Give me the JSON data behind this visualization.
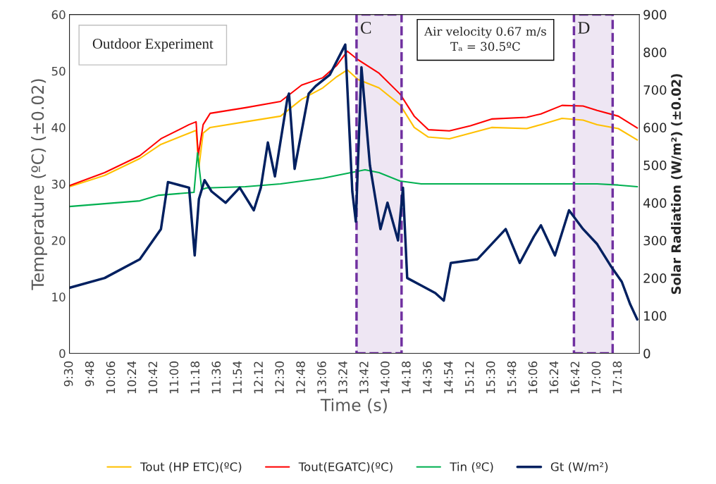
{
  "chart_data": {
    "type": "line",
    "xlabel": "Time (s)",
    "ylabel": "Temperature (ºC) (±0.02)",
    "y2label": "Solar Radiation (W/m²) (±0.02)",
    "xlim": [
      9.5,
      17.6
    ],
    "ylim": [
      0,
      60
    ],
    "yticks": [
      0,
      10,
      20,
      30,
      40,
      50,
      60
    ],
    "y2lim": [
      0,
      900
    ],
    "y2ticks": [
      0,
      100,
      200,
      300,
      400,
      500,
      600,
      700,
      800,
      900
    ],
    "xticks": [
      {
        "value": 9.5,
        "label": "9:30"
      },
      {
        "value": 9.8,
        "label": "9:48"
      },
      {
        "value": 10.1,
        "label": "10:06"
      },
      {
        "value": 10.4,
        "label": "10:24"
      },
      {
        "value": 10.7,
        "label": "10:42"
      },
      {
        "value": 11.0,
        "label": "11:00"
      },
      {
        "value": 11.3,
        "label": "11:18"
      },
      {
        "value": 11.6,
        "label": "11:36"
      },
      {
        "value": 11.9,
        "label": "11:54"
      },
      {
        "value": 12.2,
        "label": "12:12"
      },
      {
        "value": 12.5,
        "label": "12:30"
      },
      {
        "value": 12.8,
        "label": "12:48"
      },
      {
        "value": 13.1,
        "label": "13:06"
      },
      {
        "value": 13.4,
        "label": "13:24"
      },
      {
        "value": 13.7,
        "label": "13:42"
      },
      {
        "value": 14.0,
        "label": "14:00"
      },
      {
        "value": 14.3,
        "label": "14:18"
      },
      {
        "value": 14.6,
        "label": "14:36"
      },
      {
        "value": 14.9,
        "label": "14:54"
      },
      {
        "value": 15.2,
        "label": "15:12"
      },
      {
        "value": 15.5,
        "label": "15:30"
      },
      {
        "value": 15.8,
        "label": "15:48"
      },
      {
        "value": 16.1,
        "label": "16:06"
      },
      {
        "value": 16.4,
        "label": "16:24"
      },
      {
        "value": 16.7,
        "label": "16:42"
      },
      {
        "value": 17.0,
        "label": "17:00"
      },
      {
        "value": 17.3,
        "label": "17:18"
      }
    ],
    "grid": false,
    "legend": "bottom",
    "marker": "none",
    "line_style": "solid",
    "annotations": [
      "Outdoor Experiment",
      "Air velocity 0.67 m/s",
      "Tₐ = 30.5ºC"
    ],
    "bands": [
      {
        "axis": "x",
        "from": 13.58,
        "to": 14.22,
        "label": "C",
        "color": "#7030a0"
      },
      {
        "axis": "x",
        "from": 16.67,
        "to": 17.22,
        "label": "D",
        "color": "#7030a0"
      }
    ],
    "series": [
      {
        "name": "Tout (HP ETC)(ºC)",
        "color": "#ffc000",
        "x": [
          9.5,
          10.0,
          10.5,
          10.8,
          11.2,
          11.3,
          11.34,
          11.4,
          11.5,
          12.0,
          12.5,
          12.8,
          13.1,
          13.3,
          13.45,
          13.6,
          13.9,
          14.2,
          14.4,
          14.6,
          14.9,
          15.2,
          15.5,
          16.0,
          16.2,
          16.5,
          16.8,
          17.0,
          17.3,
          17.57
        ],
        "values": [
          29.5,
          31.5,
          34.5,
          37,
          39,
          39.5,
          33,
          39,
          40,
          41,
          42,
          45,
          47,
          49,
          50.2,
          48.5,
          47,
          44,
          40,
          38.3,
          38,
          39,
          40,
          39.8,
          40.5,
          41.6,
          41.3,
          40.5,
          39.8,
          37.8
        ]
      },
      {
        "name": "Tout(EGATC)(ºC)",
        "color": "#ff0000",
        "x": [
          9.5,
          10.0,
          10.5,
          10.8,
          11.2,
          11.3,
          11.33,
          11.4,
          11.5,
          12.0,
          12.5,
          12.8,
          13.1,
          13.3,
          13.45,
          13.6,
          13.9,
          14.2,
          14.4,
          14.6,
          14.9,
          15.2,
          15.5,
          16.0,
          16.2,
          16.5,
          16.8,
          17.0,
          17.3,
          17.57
        ],
        "values": [
          29.7,
          32,
          35,
          38,
          40.5,
          41,
          35,
          40.5,
          42.5,
          43.5,
          44.6,
          47.5,
          48.8,
          51,
          53.5,
          52,
          49.6,
          45.9,
          42,
          39.6,
          39.4,
          40.3,
          41.5,
          41.8,
          42.4,
          43.9,
          43.8,
          43,
          42,
          39.9
        ]
      },
      {
        "name": "Tin (ºC)",
        "color": "#00b050",
        "x": [
          9.5,
          10.0,
          10.5,
          10.77,
          11.27,
          11.32,
          11.38,
          11.45,
          12.0,
          12.5,
          12.8,
          13.1,
          13.3,
          13.5,
          13.7,
          13.9,
          14.2,
          14.5,
          15.0,
          15.5,
          16.0,
          16.5,
          17.0,
          17.3,
          17.57
        ],
        "values": [
          26,
          26.5,
          27,
          28,
          28.5,
          35.5,
          29,
          29.3,
          29.5,
          30,
          30.5,
          31,
          31.5,
          32,
          32.5,
          32,
          30.5,
          30,
          30,
          30,
          30,
          30,
          30,
          29.8,
          29.5
        ]
      },
      {
        "name": "Gt (W/m²)",
        "color": "#002060",
        "axis": "y2",
        "x": [
          9.5,
          10.0,
          10.5,
          10.8,
          10.9,
          11.2,
          11.28,
          11.34,
          11.42,
          11.52,
          11.72,
          11.92,
          12.12,
          12.22,
          12.32,
          12.42,
          12.6,
          12.62,
          12.7,
          12.9,
          13.0,
          13.2,
          13.42,
          13.52,
          13.57,
          13.65,
          13.77,
          13.92,
          14.02,
          14.17,
          14.24,
          14.3,
          14.5,
          14.7,
          14.82,
          14.92,
          15.3,
          15.7,
          15.9,
          16.1,
          16.2,
          16.4,
          16.6,
          16.8,
          17.0,
          17.2,
          17.35,
          17.47,
          17.57
        ],
        "values": [
          174,
          200,
          250,
          330,
          455,
          440,
          260,
          410,
          460,
          430,
          400,
          440,
          380,
          440,
          560,
          470,
          680,
          690,
          490,
          690,
          710,
          740,
          820,
          430,
          350,
          760,
          500,
          330,
          400,
          300,
          440,
          200,
          180,
          160,
          140,
          240,
          250,
          330,
          240,
          310,
          340,
          260,
          380,
          330,
          290,
          230,
          190,
          130,
          90
        ]
      }
    ]
  }
}
